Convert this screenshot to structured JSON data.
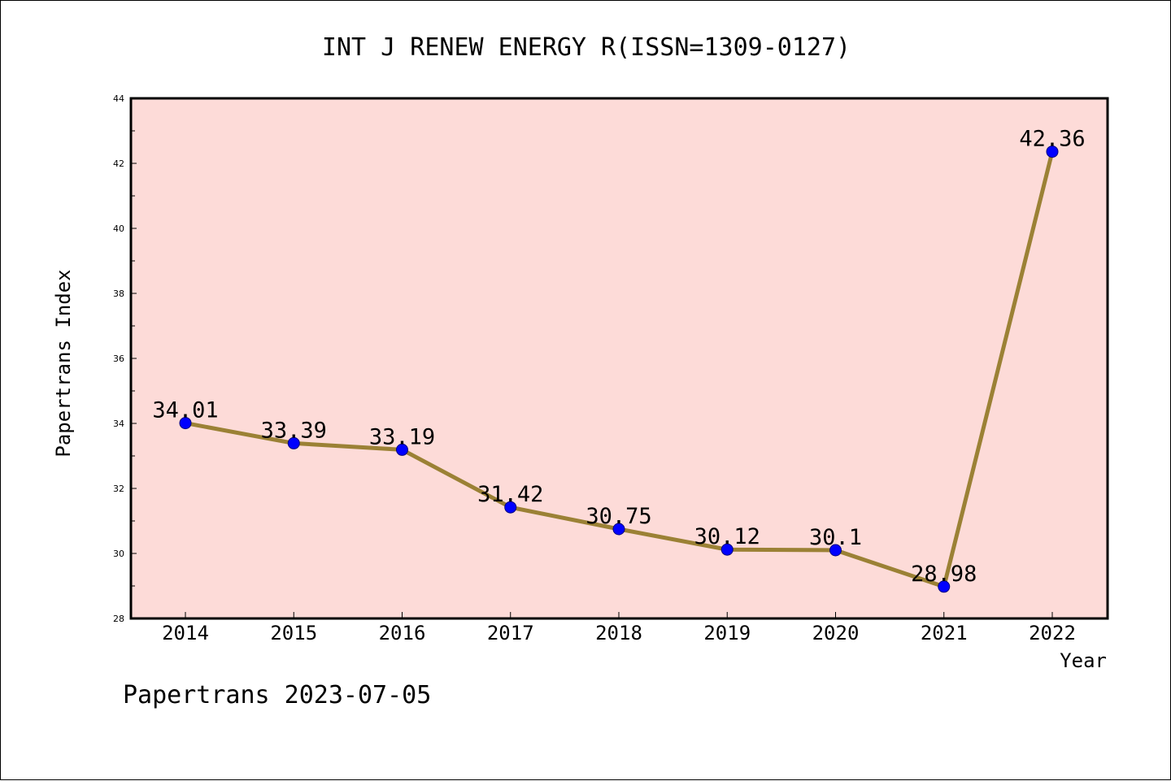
{
  "footer": "Papertrans 2023-07-05",
  "chart_data": {
    "type": "line",
    "title": "INT J RENEW ENERGY R(ISSN=1309-0127)",
    "xlabel": "Year",
    "ylabel": "Papertrans Index",
    "categories": [
      "2014",
      "2015",
      "2016",
      "2017",
      "2018",
      "2019",
      "2020",
      "2021",
      "2022"
    ],
    "values": [
      34.01,
      33.39,
      33.19,
      31.42,
      30.75,
      30.12,
      30.1,
      28.98,
      42.36
    ],
    "value_labels": [
      "34.01",
      "33.39",
      "33.19",
      "31.42",
      "30.75",
      "30.12",
      "30.1",
      "28.98",
      "42.36"
    ],
    "ylim": [
      28,
      44
    ],
    "yticks": [
      28,
      30,
      32,
      34,
      36,
      38,
      40,
      42,
      44
    ],
    "grid": false,
    "colors": {
      "plot_background": "#fddbd8",
      "line": "#9b8135",
      "marker": "#0000ff",
      "marker_edge": "#000080"
    }
  }
}
